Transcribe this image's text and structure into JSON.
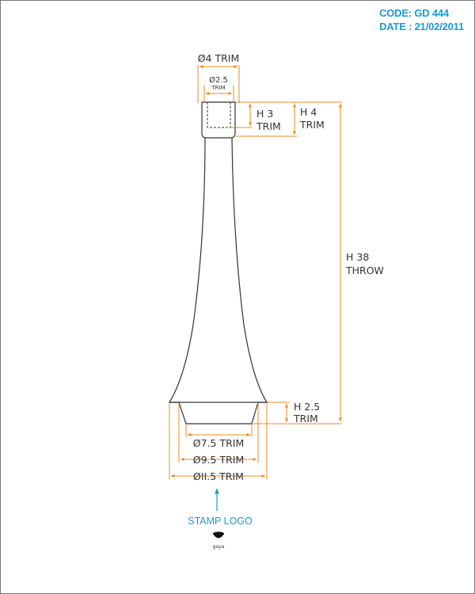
{
  "header": {
    "code": "CODE: GD 444",
    "date": "DATE : 21/02/2011"
  },
  "dimensions": {
    "top_outer": "Ø4 TRIM",
    "top_inner": "Ø2.5",
    "top_inner_trim": "TRIM",
    "h3_value": "H 3",
    "h3_trim": "TRIM",
    "h4_value": "H 4",
    "h4_trim": "TRIM",
    "h38_value": "H 38",
    "h38_throw": "THROW",
    "h25_value": "H 2.5",
    "h25_trim": "TRIM",
    "d75": "Ø7.5 TRIM",
    "d95": "Ø9.5 TRIM",
    "d115": "ØII.5 TRIM"
  },
  "stamp": {
    "label": "STAMP LOGO",
    "logo_text": "gaya"
  },
  "colors": {
    "dimension": "#f08a1c",
    "accent": "#1a9bd6",
    "outline": "#333333"
  }
}
